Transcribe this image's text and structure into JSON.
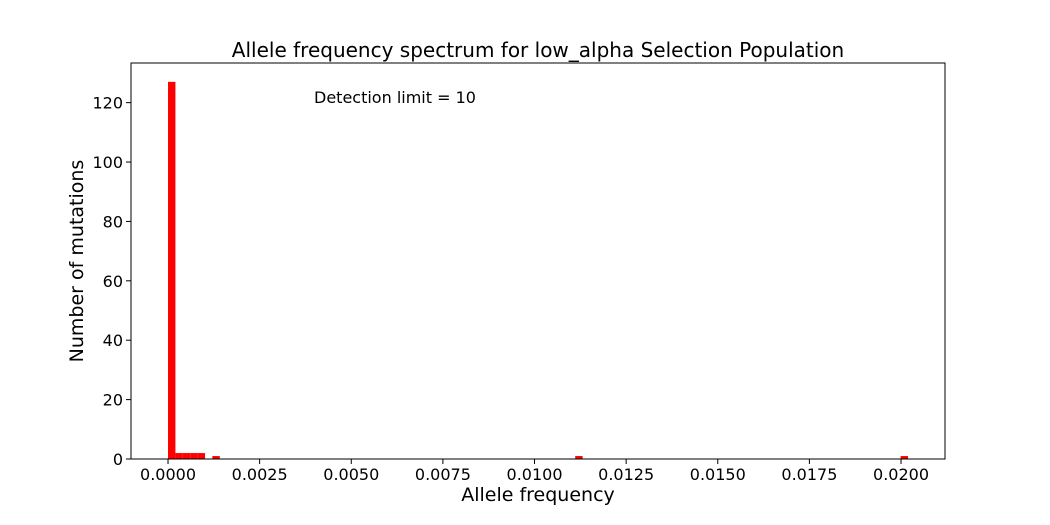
{
  "chart_data": {
    "type": "bar",
    "title": "Allele frequency spectrum for low_alpha Selection Population",
    "xlabel": "Allele frequency",
    "ylabel": "Number of mutations",
    "annotation": "Detection limit = 10",
    "bar_color": "#ff0000",
    "xlim": [
      -0.00101,
      0.0212
    ],
    "ylim": [
      0,
      133.35
    ],
    "bin_width": 0.000202,
    "bins": [
      {
        "x0": 0.0,
        "count": 127
      },
      {
        "x0": 0.000202,
        "count": 2
      },
      {
        "x0": 0.000404,
        "count": 2
      },
      {
        "x0": 0.000606,
        "count": 2
      },
      {
        "x0": 0.000808,
        "count": 2
      },
      {
        "x0": 0.00121,
        "count": 1
      },
      {
        "x0": 0.01111,
        "count": 1
      },
      {
        "x0": 0.01999,
        "count": 1
      }
    ],
    "x_ticks": [
      {
        "value": 0.0,
        "label": "0.0000"
      },
      {
        "value": 0.0025,
        "label": "0.0025"
      },
      {
        "value": 0.005,
        "label": "0.0050"
      },
      {
        "value": 0.0075,
        "label": "0.0075"
      },
      {
        "value": 0.01,
        "label": "0.0100"
      },
      {
        "value": 0.0125,
        "label": "0.0125"
      },
      {
        "value": 0.015,
        "label": "0.0150"
      },
      {
        "value": 0.0175,
        "label": "0.0175"
      },
      {
        "value": 0.02,
        "label": "0.0200"
      }
    ],
    "y_ticks": [
      {
        "value": 0,
        "label": "0"
      },
      {
        "value": 20,
        "label": "20"
      },
      {
        "value": 40,
        "label": "40"
      },
      {
        "value": 60,
        "label": "60"
      },
      {
        "value": 80,
        "label": "80"
      },
      {
        "value": 100,
        "label": "100"
      },
      {
        "value": 120,
        "label": "120"
      }
    ]
  }
}
